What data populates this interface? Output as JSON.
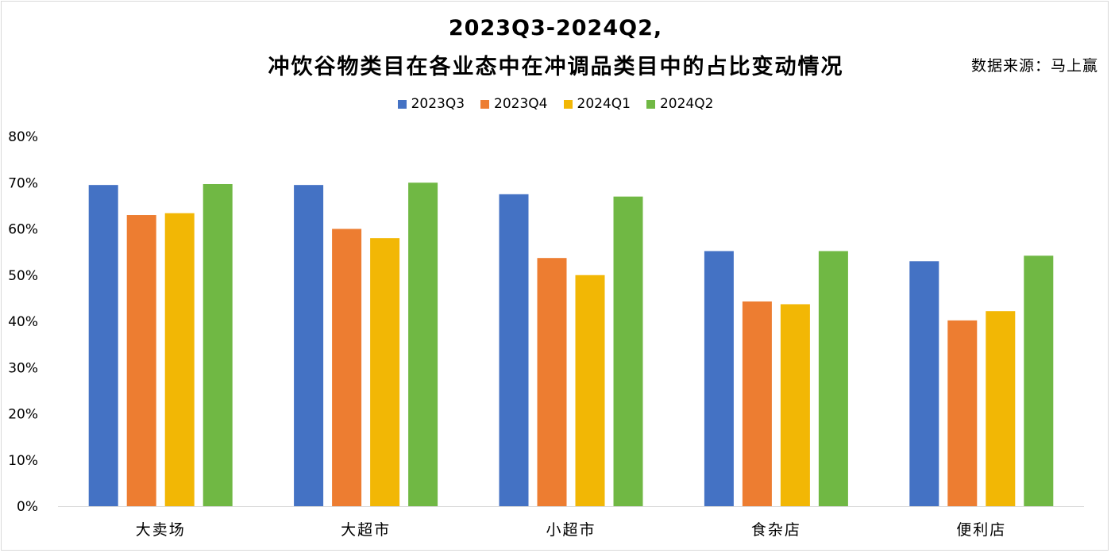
{
  "chart_data": {
    "type": "bar",
    "title": "2023Q3-2024Q2,",
    "subtitle": "冲饮谷物类目在各业态中在冲调品类目中的占比变动情况",
    "source": "数据来源：马上赢",
    "categories": [
      "大卖场",
      "大超市",
      "小超市",
      "食杂店",
      "便利店"
    ],
    "series": [
      {
        "name": "2023Q3",
        "color": "#4472c4",
        "values": [
          69.5,
          69.5,
          67.5,
          55.2,
          53.0
        ]
      },
      {
        "name": "2023Q4",
        "color": "#ed7d31",
        "values": [
          63.0,
          60.0,
          53.7,
          44.3,
          40.2
        ]
      },
      {
        "name": "2024Q1",
        "color": "#f2b705",
        "values": [
          63.4,
          58.0,
          50.0,
          43.7,
          42.2
        ]
      },
      {
        "name": "2024Q2",
        "color": "#70b844",
        "values": [
          69.7,
          70.0,
          67.0,
          55.2,
          54.2
        ]
      }
    ],
    "y_ticks": [
      "0%",
      "10%",
      "20%",
      "30%",
      "40%",
      "50%",
      "60%",
      "70%",
      "80%"
    ],
    "ylim": [
      0,
      80
    ],
    "grid": false,
    "legend_position": "top"
  }
}
